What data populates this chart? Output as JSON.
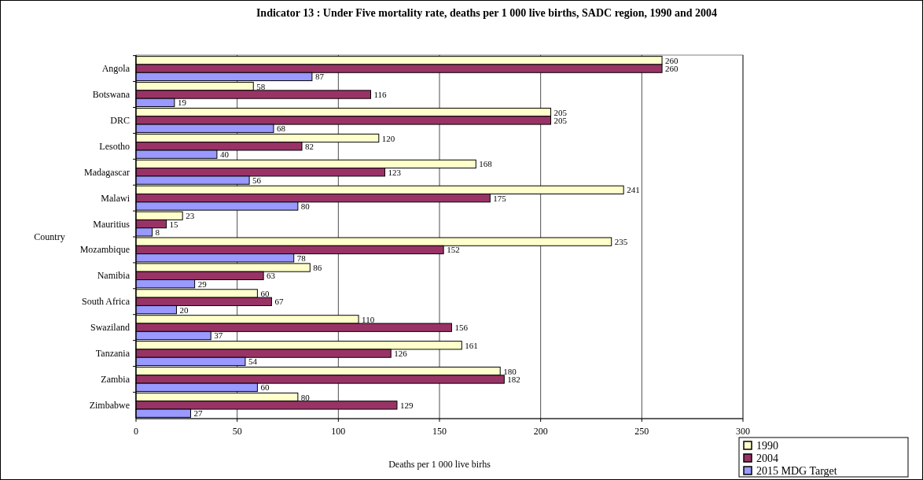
{
  "chart_data": {
    "type": "bar",
    "orientation": "horizontal",
    "title": "Indicator 13 : Under Five mortality rate, deaths per 1 000 live births, SADC region, 1990 and 2004",
    "xlabel": "Deaths per 1 000 live birhs",
    "ylabel": "Country",
    "categories": [
      "Angola",
      "Botswana",
      "DRC",
      "Lesotho",
      "Madagascar",
      "Malawi",
      "Mauritius",
      "Mozambique",
      "Namibia",
      "South Africa",
      "Swaziland",
      "Tanzania",
      "Zambia",
      "Zimbabwe"
    ],
    "series": [
      {
        "name": "1990",
        "color": "#ffffcc",
        "values": [
          260,
          58,
          205,
          120,
          168,
          241,
          23,
          235,
          86,
          60,
          110,
          161,
          180,
          80
        ]
      },
      {
        "name": "2004",
        "color": "#993366",
        "values": [
          260,
          116,
          205,
          82,
          123,
          175,
          15,
          152,
          63,
          67,
          156,
          126,
          182,
          129
        ]
      },
      {
        "name": "2015 MDG Target",
        "color": "#9999ff",
        "values": [
          87,
          19,
          68,
          40,
          56,
          80,
          8,
          78,
          29,
          20,
          37,
          54,
          60,
          27
        ]
      }
    ],
    "xlim": [
      0,
      300
    ],
    "xticks": [
      0,
      50,
      100,
      150,
      200,
      250,
      300
    ],
    "grid": "x",
    "legend": "bottom right",
    "data_labels": true
  }
}
